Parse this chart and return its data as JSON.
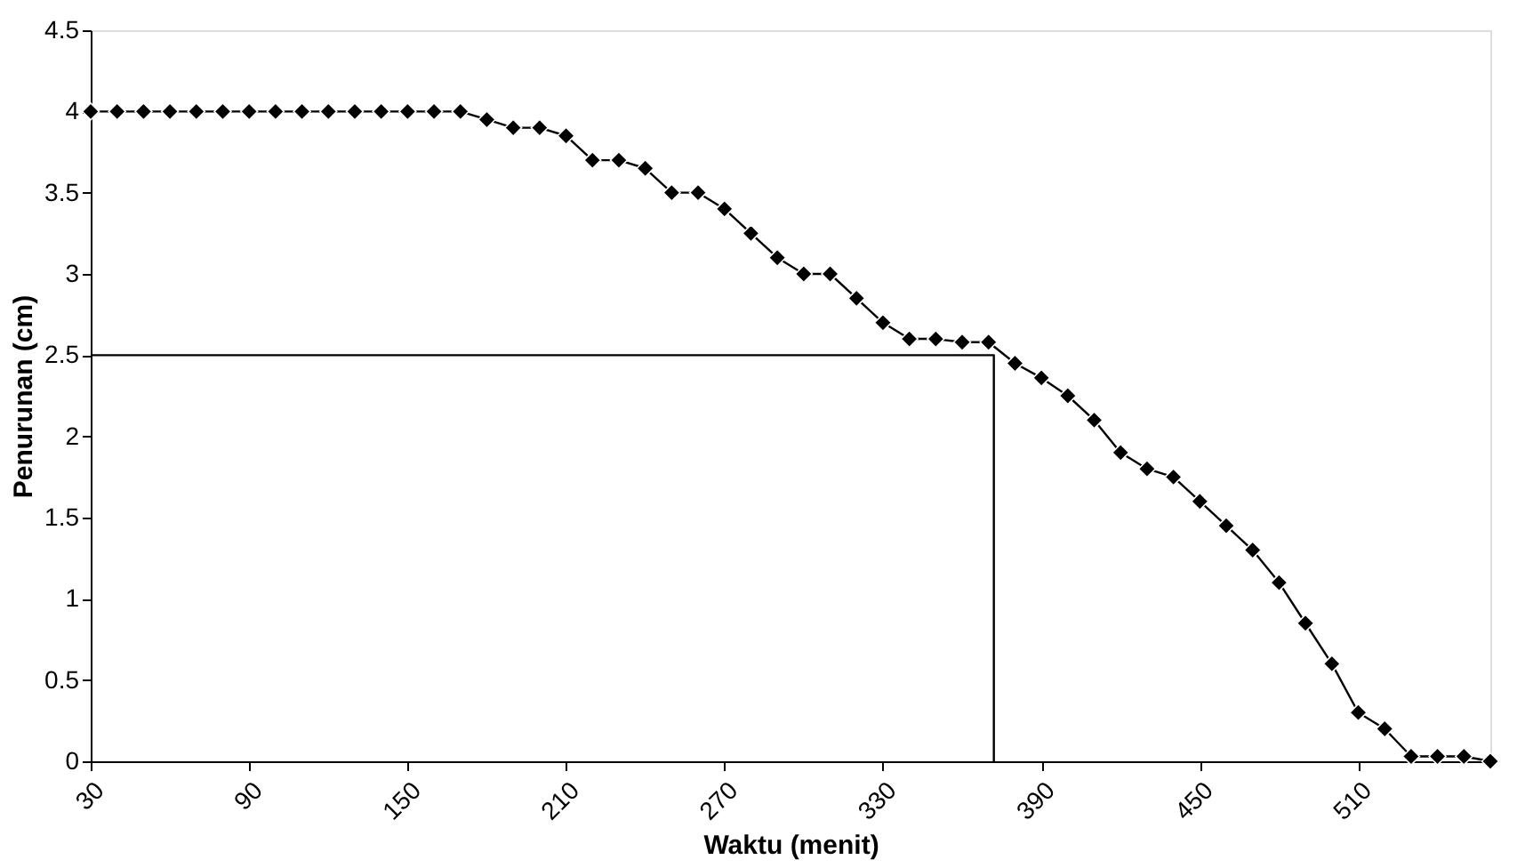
{
  "chart_data": {
    "type": "line",
    "xlabel": "Waktu (menit)",
    "ylabel": "Penurunan (cm)",
    "xlim": [
      30,
      560
    ],
    "xticks": [
      30,
      90,
      150,
      210,
      270,
      330,
      390,
      450,
      510
    ],
    "ylim": [
      0,
      4.5
    ],
    "yticks": [
      0,
      0.5,
      1,
      1.5,
      2,
      2.5,
      3,
      3.5,
      4,
      4.5
    ],
    "grid": false,
    "line_style": "solid",
    "series": [
      {
        "color": "#000000",
        "marker": "diamond",
        "x": [
          30,
          40,
          50,
          60,
          70,
          80,
          90,
          100,
          110,
          120,
          130,
          140,
          150,
          160,
          170,
          180,
          190,
          200,
          210,
          220,
          230,
          240,
          250,
          260,
          270,
          280,
          290,
          300,
          310,
          320,
          330,
          340,
          350,
          360,
          370,
          380,
          390,
          400,
          410,
          420,
          430,
          440,
          450,
          460,
          470,
          480,
          490,
          500,
          510,
          520,
          530,
          540,
          550,
          560
        ],
        "values": [
          4,
          4,
          4,
          4,
          4,
          4,
          4,
          4,
          4,
          4,
          4,
          4,
          4,
          4,
          4,
          3.95,
          3.9,
          3.9,
          3.85,
          3.7,
          3.7,
          3.65,
          3.5,
          3.5,
          3.4,
          3.25,
          3.1,
          3.0,
          3.0,
          2.85,
          2.7,
          2.6,
          2.6,
          2.58,
          2.58,
          2.45,
          2.36,
          2.25,
          2.1,
          1.9,
          1.8,
          1.75,
          1.6,
          1.45,
          1.3,
          1.1,
          0.85,
          0.6,
          0.3,
          0.2,
          0.03,
          0.03,
          0.03,
          0
        ]
      },
      {
        "color": "#000000",
        "marker": "none",
        "x": [
          30,
          372,
          372
        ],
        "values": [
          2.5,
          2.5,
          0
        ]
      }
    ]
  }
}
